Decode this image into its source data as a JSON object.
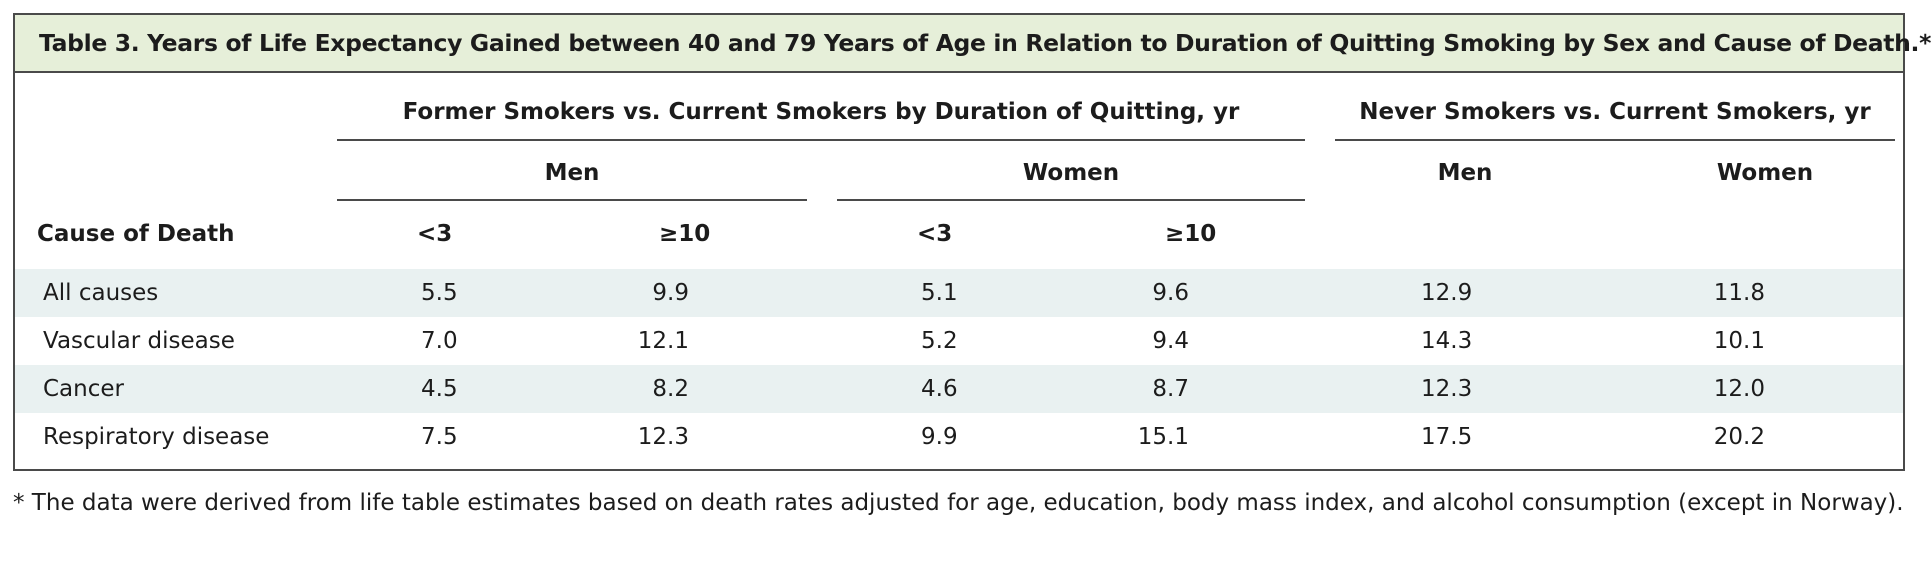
{
  "title": "Table 3. Years of Life Expectancy Gained between 40 and 79 Years of Age in Relation to Duration of Quitting Smoking by Sex and Cause of Death.*",
  "group_headers": {
    "former": "Former Smokers vs. Current Smokers by Duration of Quitting, yr",
    "never": "Never Smokers vs. Current Smokers, yr"
  },
  "sub_headers": {
    "former_men": "Men",
    "former_women": "Women",
    "never_men": "Men",
    "never_women": "Women"
  },
  "column_headers": {
    "cause": "Cause of Death",
    "men_lt3": "<3",
    "men_ge10": "≥10",
    "women_lt3": "<3",
    "women_ge10": "≥10"
  },
  "rows": [
    {
      "cause": "All causes",
      "men_lt3": "5.5",
      "men_ge10": "9.9",
      "women_lt3": "5.1",
      "women_ge10": "9.6",
      "never_men": "12.9",
      "never_women": "11.8"
    },
    {
      "cause": "Vascular disease",
      "men_lt3": "7.0",
      "men_ge10": "12.1",
      "women_lt3": "5.2",
      "women_ge10": "9.4",
      "never_men": "14.3",
      "never_women": "10.1"
    },
    {
      "cause": "Cancer",
      "men_lt3": "4.5",
      "men_ge10": "8.2",
      "women_lt3": "4.6",
      "women_ge10": "8.7",
      "never_men": "12.3",
      "never_women": "12.0"
    },
    {
      "cause": "Respiratory disease",
      "men_lt3": "7.5",
      "men_ge10": "12.3",
      "women_lt3": "9.9",
      "women_ge10": "15.1",
      "never_men": "17.5",
      "never_women": "20.2"
    }
  ],
  "footnote": "* The data were derived from life table estimates based on death rates adjusted for age, education, body mass index, and alcohol consumption (except in Norway).",
  "colors": {
    "title_background": "#e6efd9",
    "row_shading": "#e9f1f1",
    "border": "#4a4a4a"
  }
}
